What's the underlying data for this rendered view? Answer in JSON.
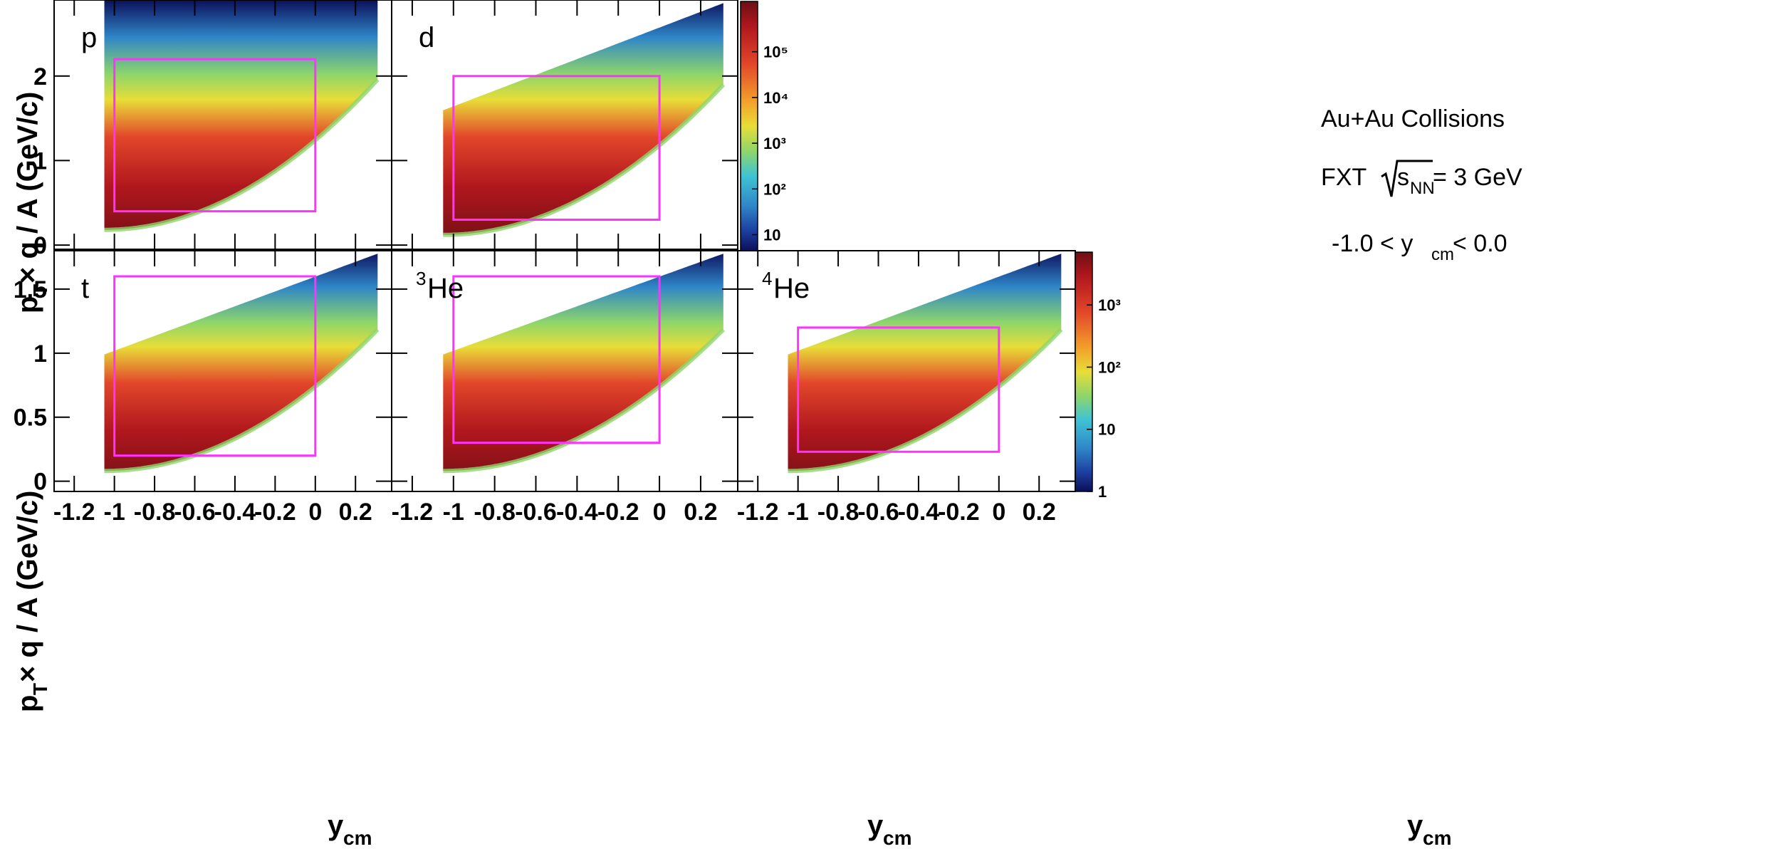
{
  "figure": {
    "annotation": {
      "line1": "Au+Au Collisions",
      "line2_prefix": "FXT ",
      "line2_sqrt_s": "s",
      "line2_sub": "NN",
      "line2_suffix": " = 3 GeV",
      "line3_prefix": "-1.0 < y",
      "line3_sub": "cm",
      "line3_suffix": " < 0.0"
    },
    "ylabel": {
      "p": "p",
      "sub": "T",
      "rest": " × q / A (GeV/c)"
    },
    "xlabel": {
      "y": "y",
      "sub": "cm"
    }
  },
  "chart_data": [
    {
      "type": "heatmap",
      "particle": "p",
      "label_sup": "",
      "label": "p",
      "xlim": [
        -1.3,
        0.38
      ],
      "ylim": [
        -0.05,
        2.9
      ],
      "xticks": [],
      "yticks": [
        0,
        1,
        2
      ],
      "ytick_labels": [
        "0",
        "1",
        "2"
      ],
      "ylabel": "pT × q / A (GeV/c)",
      "cut_box": {
        "x": [
          -1.0,
          0.0
        ],
        "y": [
          0.4,
          2.2
        ]
      },
      "colorbar": {
        "scale": "log",
        "ticks": [
          "10",
          "10²",
          "10³",
          "10⁴",
          "10⁵"
        ]
      }
    },
    {
      "type": "heatmap",
      "particle": "d",
      "label_sup": "",
      "label": "d",
      "xlim": [
        -1.3,
        0.38
      ],
      "ylim": [
        -0.05,
        2.9
      ],
      "xticks": [],
      "yticks": [
        0,
        1,
        2
      ],
      "cut_box": {
        "x": [
          -1.0,
          0.0
        ],
        "y": [
          0.3,
          2.0
        ]
      }
    },
    {
      "type": "heatmap",
      "particle": "t",
      "label_sup": "",
      "label": "t",
      "xlim": [
        -1.3,
        0.38
      ],
      "ylim": [
        -0.08,
        1.8
      ],
      "xticks": [
        -1.2,
        -1,
        -0.8,
        -0.6,
        -0.4,
        -0.2,
        0,
        0.2
      ],
      "xtick_labels": [
        "-1.2",
        "-1",
        "-0.8",
        "-0.6",
        "-0.4",
        "-0.2",
        "0",
        "0.2"
      ],
      "yticks": [
        0,
        0.5,
        1,
        1.5
      ],
      "ytick_labels": [
        "0",
        "0.5",
        "1",
        "1.5"
      ],
      "ylabel": "pT × q / A (GeV/c)",
      "xlabel": "ycm",
      "cut_box": {
        "x": [
          -1.0,
          0.0
        ],
        "y": [
          0.2,
          1.6
        ]
      }
    },
    {
      "type": "heatmap",
      "particle": "3He",
      "label_sup": "3",
      "label": "He",
      "xlim": [
        -1.3,
        0.38
      ],
      "ylim": [
        -0.08,
        1.8
      ],
      "xticks": [
        -1.2,
        -1,
        -0.8,
        -0.6,
        -0.4,
        -0.2,
        0,
        0.2
      ],
      "xtick_labels": [
        "-1.2",
        "-1",
        "-0.8",
        "-0.6",
        "-0.4",
        "-0.2",
        "0",
        "0.2"
      ],
      "yticks": [
        0,
        0.5,
        1,
        1.5
      ],
      "xlabel": "ycm",
      "cut_box": {
        "x": [
          -1.0,
          0.0
        ],
        "y": [
          0.3,
          1.6
        ]
      }
    },
    {
      "type": "heatmap",
      "particle": "4He",
      "label_sup": "4",
      "label": "He",
      "xlim": [
        -1.3,
        0.38
      ],
      "ylim": [
        -0.08,
        1.8
      ],
      "xticks": [
        -1.2,
        -1,
        -0.8,
        -0.6,
        -0.4,
        -0.2,
        0,
        0.2
      ],
      "xtick_labels": [
        "-1.2",
        "-1",
        "-0.8",
        "-0.6",
        "-0.4",
        "-0.2",
        "0",
        "0.2"
      ],
      "yticks": [
        0,
        0.5,
        1,
        1.5
      ],
      "xlabel": "ycm",
      "cut_box": {
        "x": [
          -1.0,
          0.0
        ],
        "y": [
          0.23,
          1.2
        ]
      },
      "colorbar": {
        "scale": "log",
        "ticks": [
          "1",
          "10",
          "10²",
          "10³"
        ]
      }
    }
  ],
  "colors": {
    "cut_box": "#ff33ff",
    "palette": [
      "#0b0f5a",
      "#1c3fa0",
      "#2f86c8",
      "#3fc3d4",
      "#8fd66a",
      "#e8dd38",
      "#f3a02a",
      "#e2462a",
      "#b0171d",
      "#6e0f15"
    ]
  }
}
